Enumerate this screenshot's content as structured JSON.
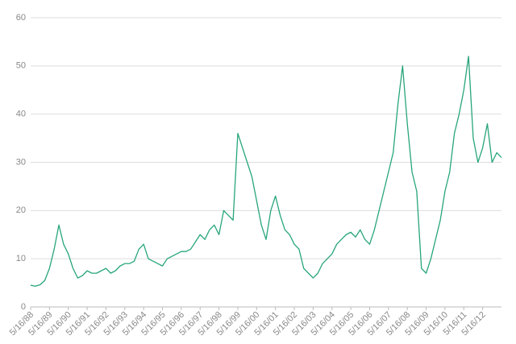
{
  "chart_data": {
    "type": "line",
    "color": "#27a57c",
    "grid": true,
    "categories": [
      "5/16/88",
      null,
      null,
      null,
      "5/16/89",
      null,
      null,
      null,
      "5/16/90",
      null,
      null,
      null,
      "5/16/91",
      null,
      null,
      null,
      "5/16/92",
      null,
      null,
      null,
      "5/16/93",
      null,
      null,
      null,
      "5/16/94",
      null,
      null,
      null,
      "5/16/95",
      null,
      null,
      null,
      "5/16/96",
      null,
      null,
      null,
      "5/16/97",
      null,
      null,
      null,
      "5/16/98",
      null,
      null,
      null,
      "5/16/99",
      null,
      null,
      null,
      "5/16/00",
      null,
      null,
      null,
      "5/16/01",
      null,
      null,
      null,
      "5/16/02",
      null,
      null,
      null,
      "5/16/03",
      null,
      null,
      null,
      "5/16/04",
      null,
      null,
      null,
      "5/16/05",
      null,
      null,
      null,
      "5/16/06",
      null,
      null,
      null,
      "5/16/07",
      null,
      null,
      null,
      "5/16/08",
      null,
      null,
      null,
      "5/16/09",
      null,
      null,
      null,
      "5/16/10",
      null,
      null,
      null,
      "5/16/11",
      null,
      null,
      null,
      "5/16/12",
      null,
      null,
      null,
      null
    ],
    "values": [
      4.5,
      4.3,
      4.6,
      5.5,
      8,
      12,
      17,
      13,
      11,
      8,
      6,
      6.5,
      7.5,
      7,
      7,
      7.5,
      8,
      7,
      7.5,
      8.5,
      9,
      9,
      9.5,
      12,
      13,
      10,
      9.5,
      9,
      8.5,
      10,
      10.5,
      11,
      11.5,
      11.5,
      12,
      13.5,
      15,
      14,
      16,
      17,
      15,
      20,
      19,
      18,
      36,
      33,
      30,
      27,
      22,
      17,
      14,
      20,
      23,
      19,
      16,
      15,
      13,
      12,
      8,
      7,
      6,
      7,
      9,
      10,
      11,
      13,
      14,
      15,
      15.5,
      14.5,
      16,
      14,
      13,
      16,
      20,
      24,
      28,
      32,
      42,
      50,
      38,
      28,
      24,
      8,
      7,
      10,
      14,
      18,
      24,
      28,
      36,
      40,
      45,
      52,
      35,
      30,
      33,
      38,
      30,
      32,
      31
    ],
    "ylim": [
      0,
      60
    ],
    "yticks": [
      0,
      10,
      20,
      30,
      40,
      50,
      60
    ]
  }
}
